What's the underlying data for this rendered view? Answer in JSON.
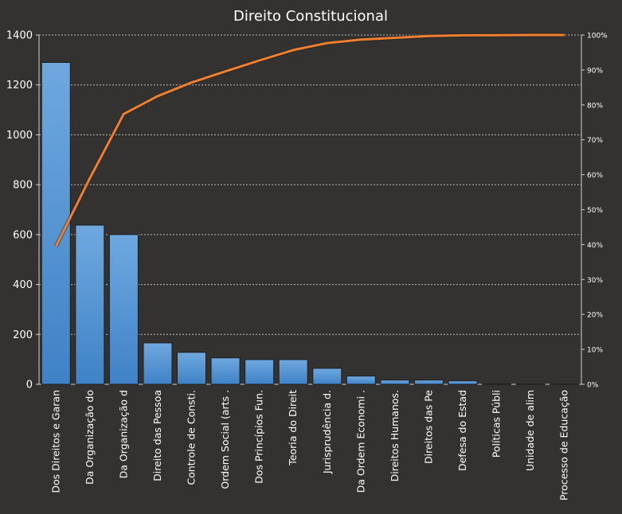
{
  "chart_data": {
    "type": "bar",
    "title": "Direito Constitucional",
    "xlabel": "",
    "ylabel": "",
    "ylim": [
      0,
      1400
    ],
    "y2lim": [
      0,
      100
    ],
    "yticks": [
      "0",
      "200",
      "400",
      "600",
      "800",
      "1000",
      "1200",
      "1400"
    ],
    "y2ticks": [
      "0%",
      "10%",
      "20%",
      "30%",
      "40%",
      "50%",
      "60%",
      "70%",
      "80%",
      "90%",
      "100%"
    ],
    "grid": true,
    "categories": [
      "Dos Direitos e Garan",
      "Da Organização do",
      "Da Organização d",
      "Direito das Pessoa",
      "Controle de Consti.",
      "Ordem Social (arts .",
      "Dos Princípios Fun.",
      "Teoria do Direit",
      "Jurisprudência d.",
      "Da Ordem Economi .",
      "Direitos Humanos.",
      "Direitos das Pe",
      "Defesa do Estad",
      "Políticas Públi",
      "Unidade de alim",
      "Processo de Educação"
    ],
    "series": [
      {
        "type": "bar",
        "axis": "left",
        "values": [
          1290,
          638,
          600,
          166,
          128,
          106,
          99,
          99,
          64,
          33,
          17,
          17,
          14,
          2,
          1,
          1
        ]
      },
      {
        "type": "line",
        "axis": "right",
        "unit": "%",
        "values": [
          39.5,
          59.0,
          77.4,
          82.5,
          86.4,
          89.6,
          92.7,
          95.7,
          97.7,
          98.7,
          99.2,
          99.7,
          99.9,
          99.95,
          100,
          100
        ]
      }
    ],
    "colors": {
      "bar": "#4a8fd4",
      "bar_top": "#6fa8df",
      "line": "#f07f2f",
      "background": "#333231",
      "grid": "#bbbbbb",
      "text": "#ffffff"
    }
  }
}
